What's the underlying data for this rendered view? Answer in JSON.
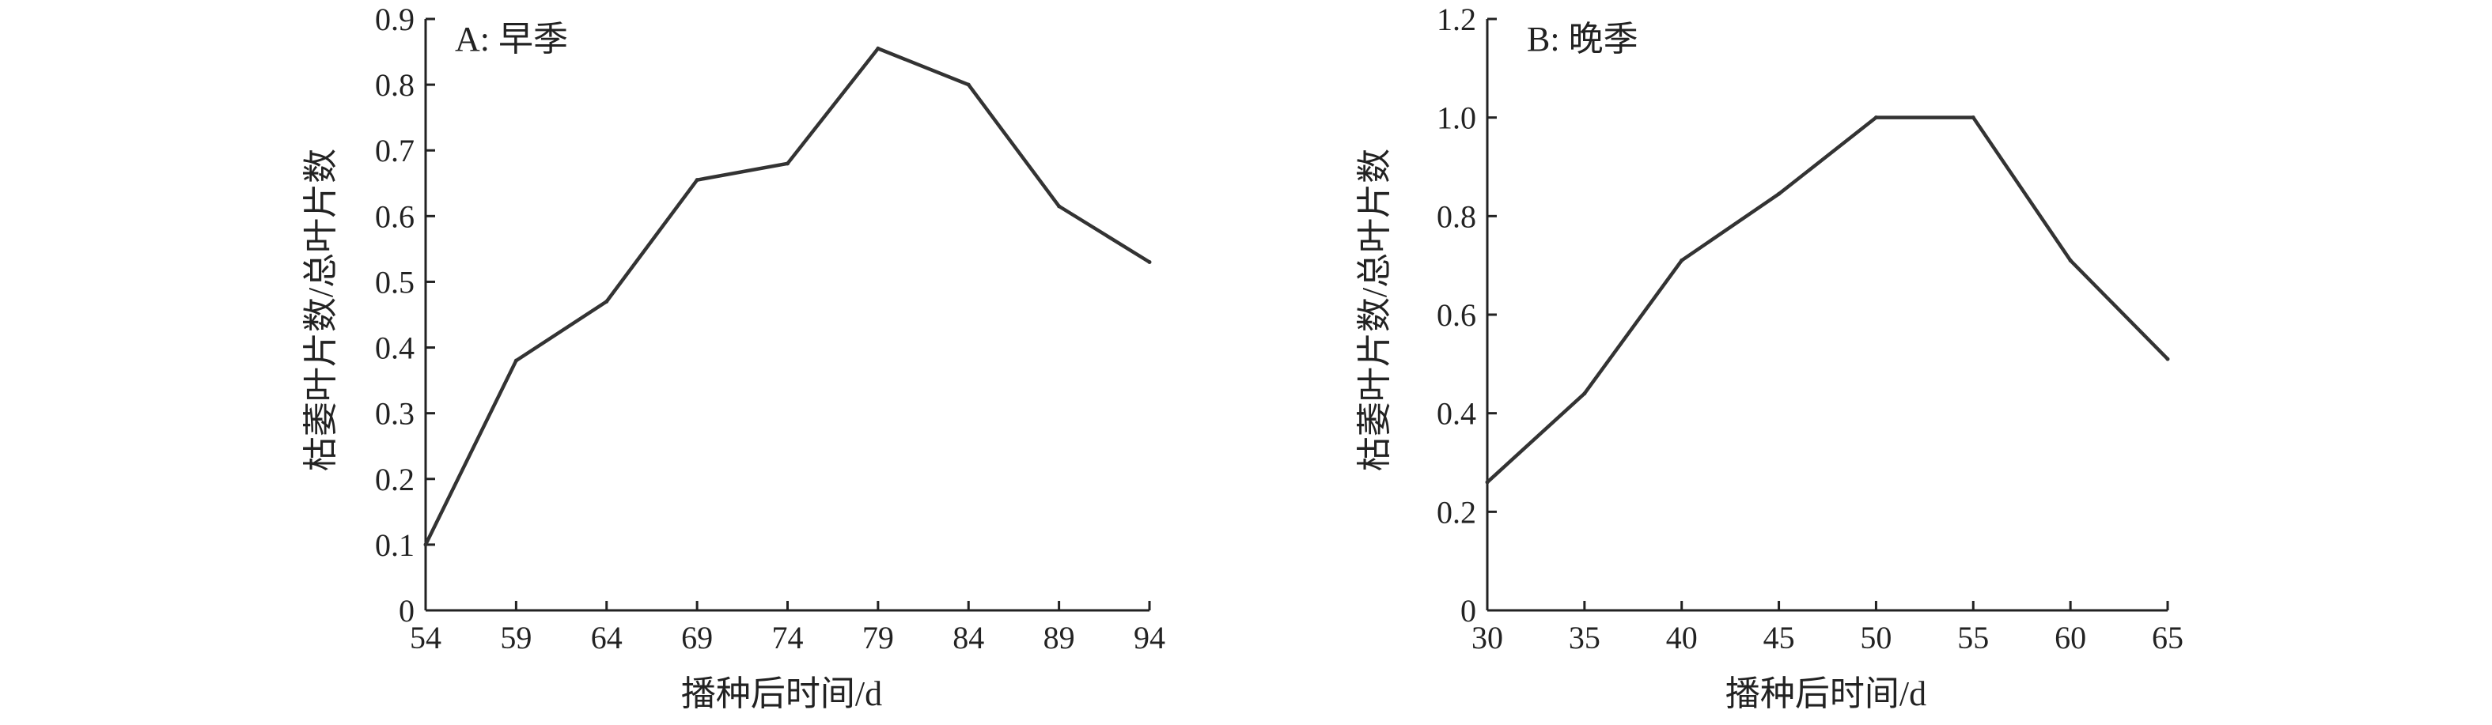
{
  "chart_data": [
    {
      "type": "line",
      "panel_label": "A: 早季",
      "xlabel": "播种后时间/d",
      "ylabel": "枯萎叶片数/总叶片数",
      "x": [
        54,
        59,
        64,
        69,
        74,
        79,
        84,
        89,
        94
      ],
      "series": [
        {
          "values": [
            0.1,
            0.38,
            0.47,
            0.655,
            0.68,
            0.855,
            0.8,
            0.615,
            0.53
          ]
        }
      ],
      "xticks": [
        "54",
        "59",
        "64",
        "69",
        "74",
        "79",
        "84",
        "89",
        "94"
      ],
      "yticks": [
        "0",
        "0.1",
        "0.2",
        "0.3",
        "0.4",
        "0.5",
        "0.6",
        "0.7",
        "0.8",
        "0.9"
      ],
      "xlim": [
        54,
        94
      ],
      "ylim": [
        0,
        0.9
      ],
      "grid": false,
      "line_color": "#333333"
    },
    {
      "type": "line",
      "panel_label": "B: 晚季",
      "xlabel": "播种后时间/d",
      "ylabel": "枯萎叶片数/总叶片数",
      "x": [
        30,
        35,
        40,
        45,
        50,
        55,
        60,
        65
      ],
      "series": [
        {
          "values": [
            0.26,
            0.44,
            0.71,
            0.845,
            1.0,
            1.0,
            0.71,
            0.51
          ]
        }
      ],
      "xticks": [
        "30",
        "35",
        "40",
        "45",
        "50",
        "55",
        "60",
        "65"
      ],
      "yticks": [
        "0",
        "0.2",
        "0.4",
        "0.6",
        "0.8",
        "1.0",
        "1.2"
      ],
      "xlim": [
        30,
        65
      ],
      "ylim": [
        0,
        1.2
      ],
      "grid": false,
      "line_color": "#333333"
    }
  ]
}
